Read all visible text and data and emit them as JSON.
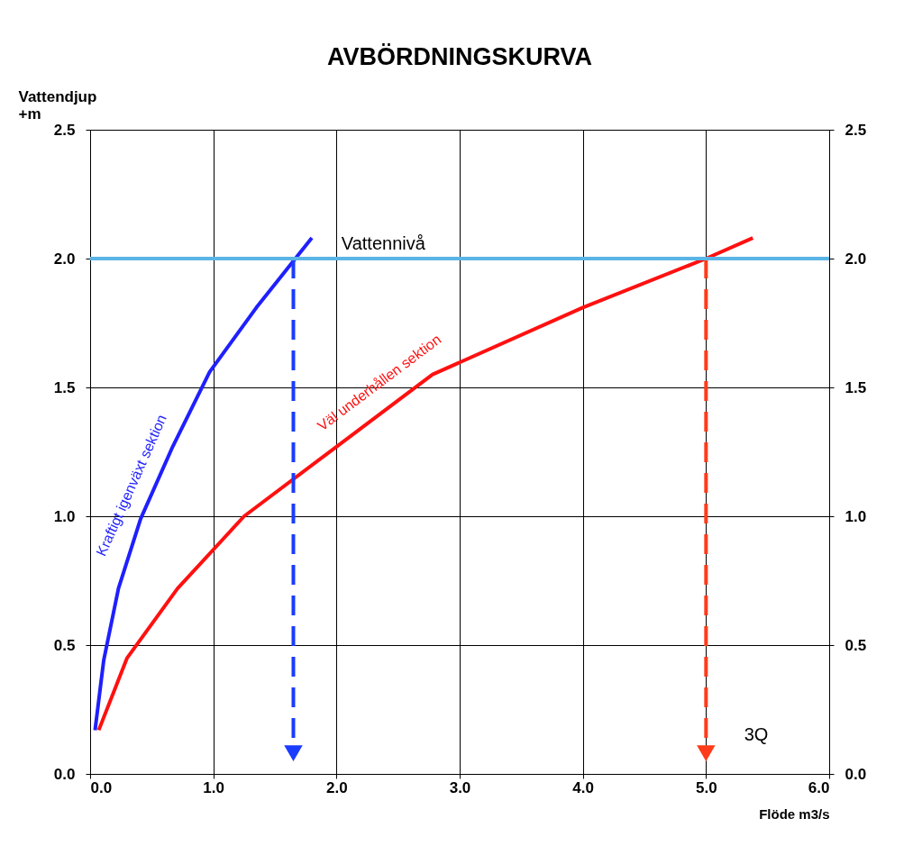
{
  "chart_data": {
    "type": "line",
    "title": "AVBÖRDNINGSKURVA",
    "xlabel": "Flöde m3/s",
    "ylabel": "Vattendjup +m",
    "xlim": [
      0,
      6
    ],
    "xticks": [
      {
        "value": 0,
        "label": "0.0"
      },
      {
        "value": 1,
        "label": "1.0"
      },
      {
        "value": 2,
        "label": "2.0"
      },
      {
        "value": 3,
        "label": "3.0"
      },
      {
        "value": 4,
        "label": "4.0"
      },
      {
        "value": 5,
        "label": "5.0"
      },
      {
        "value": 6,
        "label": "6.0"
      }
    ],
    "ylim": [
      0,
      2.5
    ],
    "yticks": [
      {
        "value": 0,
        "label": "0.0"
      },
      {
        "value": 0.5,
        "label": "0.5"
      },
      {
        "value": 1,
        "label": "1.0"
      },
      {
        "value": 1.5,
        "label": "1.5"
      },
      {
        "value": 2,
        "label": "2.0"
      },
      {
        "value": 2.5,
        "label": "2.5"
      }
    ],
    "y2lim": [
      0,
      2.5
    ],
    "y2ticks": [
      {
        "value": 0,
        "label": "0.0"
      },
      {
        "value": 0.5,
        "label": "0.5"
      },
      {
        "value": 1,
        "label": "1.0"
      },
      {
        "value": 1.5,
        "label": "1.5"
      },
      {
        "value": 2,
        "label": "2.0"
      },
      {
        "value": 2.5,
        "label": "2.5"
      }
    ],
    "grid": true,
    "series": [
      {
        "name": "Kraftigt igenväxt sektion",
        "color": "#1f1fff",
        "x": [
          0.04,
          0.11,
          0.23,
          0.41,
          0.67,
          0.97,
          1.35,
          1.65,
          1.8
        ],
        "values": [
          0.17,
          0.44,
          0.72,
          0.99,
          1.27,
          1.56,
          1.81,
          1.99,
          2.08
        ]
      },
      {
        "name": "Väl underhållen sektion",
        "color": "#ff1010",
        "x": [
          0.07,
          0.3,
          0.71,
          1.25,
          2.0,
          2.78,
          4.0,
          5.0,
          5.38
        ],
        "values": [
          0.17,
          0.45,
          0.72,
          1.0,
          1.27,
          1.55,
          1.81,
          2.0,
          2.08
        ]
      },
      {
        "type": "line",
        "color": "#1a3cff",
        "x": [
          1.65,
          1.65
        ],
        "values": [
          2.0,
          0.08
        ],
        "line_style": "dashed"
      },
      {
        "type": "line",
        "color": "#ff3b1a",
        "x": [
          5.0,
          5.0
        ],
        "values": [
          2.0,
          0.08
        ],
        "line_style": "dashed"
      }
    ],
    "ref_lines": [
      {
        "axis": "y",
        "value": 2.0,
        "label": "Vattennivå",
        "color": "#5ab4e5"
      }
    ],
    "annotations": [
      "3Q"
    ]
  }
}
